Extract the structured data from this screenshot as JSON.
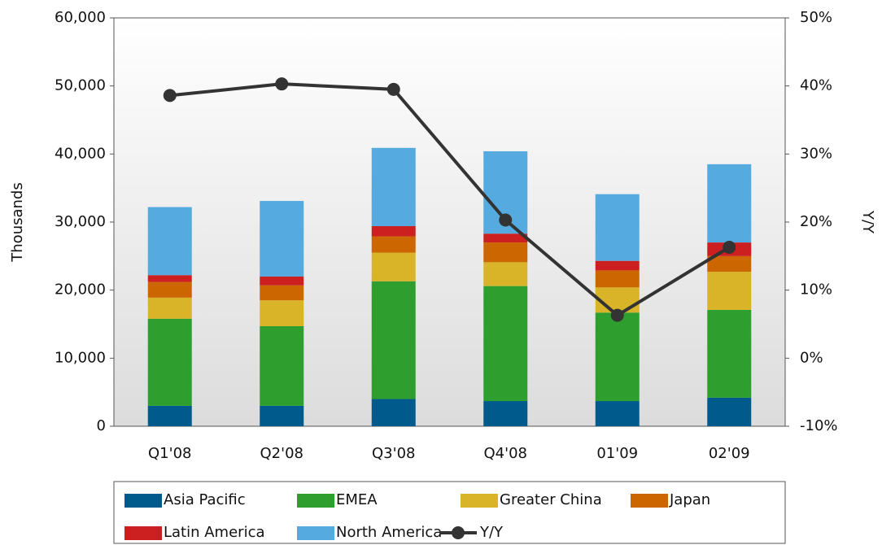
{
  "chart_data": {
    "type": "bar",
    "stacked": true,
    "categories": [
      "Q1'08",
      "Q2'08",
      "Q3'08",
      "Q4'08",
      "01'09",
      "02'09"
    ],
    "ylabel": "Thousands",
    "y2label": "Y/Y",
    "ylim": [
      0,
      60000
    ],
    "yticks": [
      0,
      {
        "value": 10000,
        "label": "10,000"
      },
      {
        "value": 20000,
        "label": "20,000"
      },
      {
        "value": 30000,
        "label": "30,000"
      },
      {
        "value": 40000,
        "label": "40,000"
      },
      {
        "value": 50000,
        "label": "50,000"
      },
      {
        "value": 60000,
        "label": "60,000"
      }
    ],
    "y2lim": [
      -10,
      50
    ],
    "y2ticks": [
      {
        "value": -10,
        "label": "-10%"
      },
      {
        "value": 0,
        "label": "0%"
      },
      {
        "value": 10,
        "label": "10%"
      },
      {
        "value": 20,
        "label": "20%"
      },
      {
        "value": 30,
        "label": "30%"
      },
      {
        "value": 40,
        "label": "40%"
      },
      {
        "value": 50,
        "label": "50%"
      }
    ],
    "legend": "bottom",
    "series": [
      {
        "name": "Asia Pacific",
        "color": "#005a8c",
        "values": [
          3000,
          3000,
          4000,
          3700,
          3700,
          4200
        ]
      },
      {
        "name": "EMEA",
        "color": "#2e9e2e",
        "values": [
          12800,
          11700,
          17300,
          16900,
          13000,
          12900
        ]
      },
      {
        "name": "Greater China",
        "color": "#d9b428",
        "values": [
          3100,
          3800,
          4200,
          3500,
          3700,
          5600
        ]
      },
      {
        "name": "Japan",
        "color": "#cc6600",
        "values": [
          2300,
          2200,
          2400,
          2900,
          2500,
          2300
        ]
      },
      {
        "name": "Latin America",
        "color": "#cc1f1f",
        "values": [
          1000,
          1300,
          1500,
          1300,
          1400,
          2000
        ]
      },
      {
        "name": "North America",
        "color": "#55aadf",
        "values": [
          10000,
          11100,
          11500,
          12100,
          9800,
          11500
        ]
      },
      {
        "name": "Y/Y",
        "color": "#333333",
        "type": "line",
        "axis": "y2",
        "values": [
          38.6,
          40.3,
          39.5,
          20.3,
          6.3,
          16.3
        ]
      }
    ]
  }
}
